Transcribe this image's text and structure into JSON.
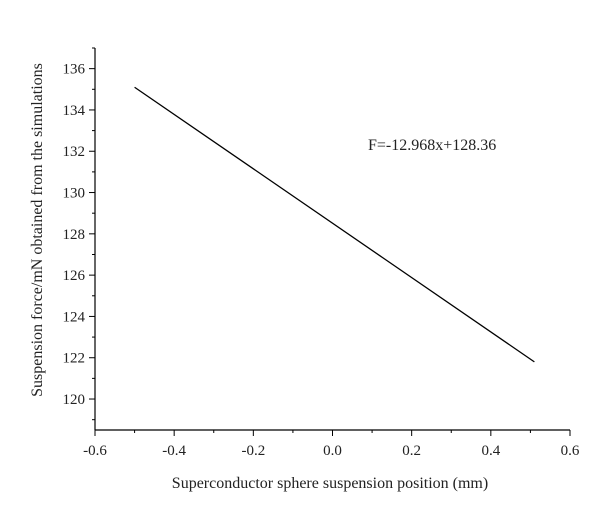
{
  "chart_data": {
    "type": "line",
    "title": "",
    "xlabel": "Superconductor sphere suspension position (mm)",
    "ylabel": "Suspension force/mN obtained from the simulations",
    "xlim": [
      -0.6,
      0.6
    ],
    "ylim": [
      118.5,
      137
    ],
    "x_ticks": [
      -0.6,
      -0.4,
      -0.2,
      0.0,
      0.2,
      0.4,
      0.6
    ],
    "x_tick_labels": [
      "-0.6",
      "-0.4",
      "-0.2",
      "0.0",
      "0.2",
      "0.4",
      "0.6"
    ],
    "y_ticks": [
      120,
      122,
      124,
      126,
      128,
      130,
      132,
      134,
      136
    ],
    "y_tick_labels": [
      "120",
      "122",
      "124",
      "126",
      "128",
      "130",
      "132",
      "134",
      "136"
    ],
    "grid": false,
    "legend": "none",
    "series": [
      {
        "x": [
          -0.5,
          0.51
        ],
        "y": [
          135.1,
          121.8
        ],
        "color": "#000000"
      }
    ],
    "annotations": [
      {
        "text": "F=-12.968x+128.36"
      }
    ]
  }
}
